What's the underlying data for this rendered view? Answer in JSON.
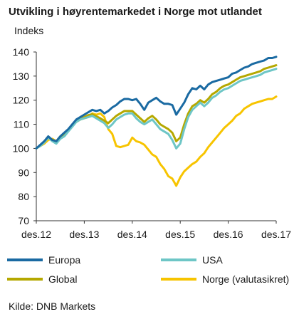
{
  "chart_data": {
    "type": "line",
    "title": "Utvikling i høyrentemarkedet i Norge mot utlandet",
    "ylabel": "Indeks",
    "source": "Kilde: DNB Markets",
    "ylim": [
      70,
      140
    ],
    "yticks": [
      70,
      80,
      90,
      100,
      110,
      120,
      130,
      140
    ],
    "xlim": [
      0,
      60
    ],
    "xticks": [
      {
        "x": 0,
        "label": "des.12"
      },
      {
        "x": 12,
        "label": "des.13"
      },
      {
        "x": 24,
        "label": "des.14"
      },
      {
        "x": 36,
        "label": "des.15"
      },
      {
        "x": 48,
        "label": "des.16"
      },
      {
        "x": 60,
        "label": "des.17"
      }
    ],
    "grid": false,
    "series": [
      {
        "name": "Europa",
        "color": "#1a6aa2",
        "points": [
          [
            0,
            100
          ],
          [
            1,
            101.5
          ],
          [
            2,
            103
          ],
          [
            3,
            105
          ],
          [
            4,
            103.5
          ],
          [
            5,
            103
          ],
          [
            6,
            105
          ],
          [
            7,
            106.5
          ],
          [
            8,
            108
          ],
          [
            9,
            110
          ],
          [
            10,
            112
          ],
          [
            11,
            113
          ],
          [
            12,
            114
          ],
          [
            13,
            115
          ],
          [
            14,
            116
          ],
          [
            15,
            115.5
          ],
          [
            16,
            116
          ],
          [
            17,
            114.5
          ],
          [
            18,
            115.5
          ],
          [
            19,
            117
          ],
          [
            20,
            118
          ],
          [
            21,
            119.5
          ],
          [
            22,
            120.5
          ],
          [
            23,
            120.5
          ],
          [
            24,
            120
          ],
          [
            25,
            120.5
          ],
          [
            26,
            118.5
          ],
          [
            27,
            116
          ],
          [
            28,
            119
          ],
          [
            29,
            120
          ],
          [
            30,
            121
          ],
          [
            31,
            119.5
          ],
          [
            32,
            118.5
          ],
          [
            33,
            118.5
          ],
          [
            34,
            118
          ],
          [
            35,
            114
          ],
          [
            36,
            116.5
          ],
          [
            37,
            119
          ],
          [
            38,
            122.5
          ],
          [
            39,
            125
          ],
          [
            40,
            124.5
          ],
          [
            41,
            126
          ],
          [
            42,
            124.5
          ],
          [
            43,
            126.5
          ],
          [
            44,
            127.5
          ],
          [
            45,
            128
          ],
          [
            46,
            128.5
          ],
          [
            47,
            129
          ],
          [
            48,
            129.5
          ],
          [
            49,
            131
          ],
          [
            50,
            131.5
          ],
          [
            51,
            132.5
          ],
          [
            52,
            133.5
          ],
          [
            53,
            134
          ],
          [
            54,
            135
          ],
          [
            55,
            135.5
          ],
          [
            56,
            136
          ],
          [
            57,
            136.5
          ],
          [
            58,
            137.5
          ],
          [
            59,
            137.5
          ],
          [
            60,
            138
          ]
        ]
      },
      {
        "name": "USA",
        "color": "#6ec6c6",
        "points": [
          [
            0,
            100
          ],
          [
            1,
            101
          ],
          [
            2,
            102.5
          ],
          [
            3,
            104.5
          ],
          [
            4,
            103
          ],
          [
            5,
            102
          ],
          [
            6,
            104
          ],
          [
            7,
            105
          ],
          [
            8,
            107
          ],
          [
            9,
            109
          ],
          [
            10,
            111
          ],
          [
            11,
            112
          ],
          [
            12,
            112.5
          ],
          [
            13,
            113
          ],
          [
            14,
            113.5
          ],
          [
            15,
            112.5
          ],
          [
            16,
            111.5
          ],
          [
            17,
            110.5
          ],
          [
            18,
            108.5
          ],
          [
            19,
            110
          ],
          [
            20,
            112
          ],
          [
            21,
            113
          ],
          [
            22,
            114
          ],
          [
            23,
            114.5
          ],
          [
            24,
            114.5
          ],
          [
            25,
            112.5
          ],
          [
            26,
            111
          ],
          [
            27,
            110
          ],
          [
            28,
            111
          ],
          [
            29,
            112
          ],
          [
            30,
            110
          ],
          [
            31,
            108
          ],
          [
            32,
            107
          ],
          [
            33,
            106
          ],
          [
            34,
            103.5
          ],
          [
            35,
            100
          ],
          [
            36,
            102
          ],
          [
            37,
            108
          ],
          [
            38,
            113
          ],
          [
            39,
            116
          ],
          [
            40,
            117.5
          ],
          [
            41,
            119
          ],
          [
            42,
            117.5
          ],
          [
            43,
            119
          ],
          [
            44,
            121
          ],
          [
            45,
            122
          ],
          [
            46,
            123.5
          ],
          [
            47,
            124.5
          ],
          [
            48,
            125
          ],
          [
            49,
            126
          ],
          [
            50,
            127
          ],
          [
            51,
            128
          ],
          [
            52,
            128.5
          ],
          [
            53,
            129
          ],
          [
            54,
            129.5
          ],
          [
            55,
            130
          ],
          [
            56,
            130.5
          ],
          [
            57,
            131.5
          ],
          [
            58,
            132
          ],
          [
            59,
            132.5
          ],
          [
            60,
            133
          ]
        ]
      },
      {
        "name": "Global",
        "color": "#b5a800",
        "points": [
          [
            0,
            100
          ],
          [
            1,
            101.2
          ],
          [
            2,
            102.8
          ],
          [
            3,
            104.8
          ],
          [
            4,
            103.2
          ],
          [
            5,
            102.5
          ],
          [
            6,
            104.5
          ],
          [
            7,
            105.5
          ],
          [
            8,
            107.5
          ],
          [
            9,
            109.5
          ],
          [
            10,
            111.5
          ],
          [
            11,
            112.5
          ],
          [
            12,
            113
          ],
          [
            13,
            113.8
          ],
          [
            14,
            114.2
          ],
          [
            15,
            113.3
          ],
          [
            16,
            112.5
          ],
          [
            17,
            111.5
          ],
          [
            18,
            110.5
          ],
          [
            19,
            112
          ],
          [
            20,
            113.5
          ],
          [
            21,
            114.5
          ],
          [
            22,
            115.5
          ],
          [
            23,
            115.5
          ],
          [
            24,
            115.5
          ],
          [
            25,
            114
          ],
          [
            26,
            112.5
          ],
          [
            27,
            111
          ],
          [
            28,
            112.5
          ],
          [
            29,
            113.5
          ],
          [
            30,
            112
          ],
          [
            31,
            110
          ],
          [
            32,
            109
          ],
          [
            33,
            108
          ],
          [
            34,
            106.5
          ],
          [
            35,
            103
          ],
          [
            36,
            104.5
          ],
          [
            37,
            110
          ],
          [
            38,
            114.5
          ],
          [
            39,
            117.5
          ],
          [
            40,
            118.5
          ],
          [
            41,
            120
          ],
          [
            42,
            119
          ],
          [
            43,
            120.5
          ],
          [
            44,
            122.5
          ],
          [
            45,
            123.5
          ],
          [
            46,
            125
          ],
          [
            47,
            126
          ],
          [
            48,
            126.5
          ],
          [
            49,
            127.5
          ],
          [
            50,
            128.5
          ],
          [
            51,
            129.5
          ],
          [
            52,
            130
          ],
          [
            53,
            130.5
          ],
          [
            54,
            131
          ],
          [
            55,
            131.5
          ],
          [
            56,
            132
          ],
          [
            57,
            133
          ],
          [
            58,
            133.5
          ],
          [
            59,
            134
          ],
          [
            60,
            134.5
          ]
        ]
      },
      {
        "name": "Norge (valutasikret)",
        "color": "#f7c400",
        "points": [
          [
            0,
            100
          ],
          [
            1,
            101
          ],
          [
            2,
            102
          ],
          [
            3,
            103.5
          ],
          [
            4,
            104
          ],
          [
            5,
            103
          ],
          [
            6,
            105
          ],
          [
            7,
            106
          ],
          [
            8,
            107.5
          ],
          [
            9,
            109.5
          ],
          [
            10,
            111
          ],
          [
            11,
            112
          ],
          [
            12,
            112.5
          ],
          [
            13,
            113
          ],
          [
            14,
            114.5
          ],
          [
            15,
            114
          ],
          [
            16,
            114.5
          ],
          [
            17,
            113
          ],
          [
            18,
            108
          ],
          [
            19,
            106
          ],
          [
            20,
            101
          ],
          [
            21,
            100.5
          ],
          [
            22,
            101
          ],
          [
            23,
            101.5
          ],
          [
            24,
            104.5
          ],
          [
            25,
            103
          ],
          [
            26,
            102.5
          ],
          [
            27,
            101.5
          ],
          [
            28,
            99.5
          ],
          [
            29,
            97.5
          ],
          [
            30,
            96.5
          ],
          [
            31,
            93.5
          ],
          [
            32,
            91.5
          ],
          [
            33,
            88.5
          ],
          [
            34,
            87.5
          ],
          [
            35,
            84.5
          ],
          [
            36,
            88
          ],
          [
            37,
            90.5
          ],
          [
            38,
            92
          ],
          [
            39,
            93.5
          ],
          [
            40,
            94.5
          ],
          [
            41,
            96.5
          ],
          [
            42,
            98
          ],
          [
            43,
            100.5
          ],
          [
            44,
            102.5
          ],
          [
            45,
            104.5
          ],
          [
            46,
            106.5
          ],
          [
            47,
            108.5
          ],
          [
            48,
            110
          ],
          [
            49,
            111.5
          ],
          [
            50,
            113.5
          ],
          [
            51,
            114.5
          ],
          [
            52,
            116.5
          ],
          [
            53,
            117.5
          ],
          [
            54,
            118.5
          ],
          [
            55,
            119
          ],
          [
            56,
            119.5
          ],
          [
            57,
            120
          ],
          [
            58,
            120.5
          ],
          [
            59,
            120.5
          ],
          [
            60,
            121.5
          ]
        ]
      }
    ],
    "legend": {
      "placement": "bottom",
      "entries": [
        "Europa",
        "USA",
        "Global",
        "Norge (valutasikret)"
      ]
    }
  }
}
